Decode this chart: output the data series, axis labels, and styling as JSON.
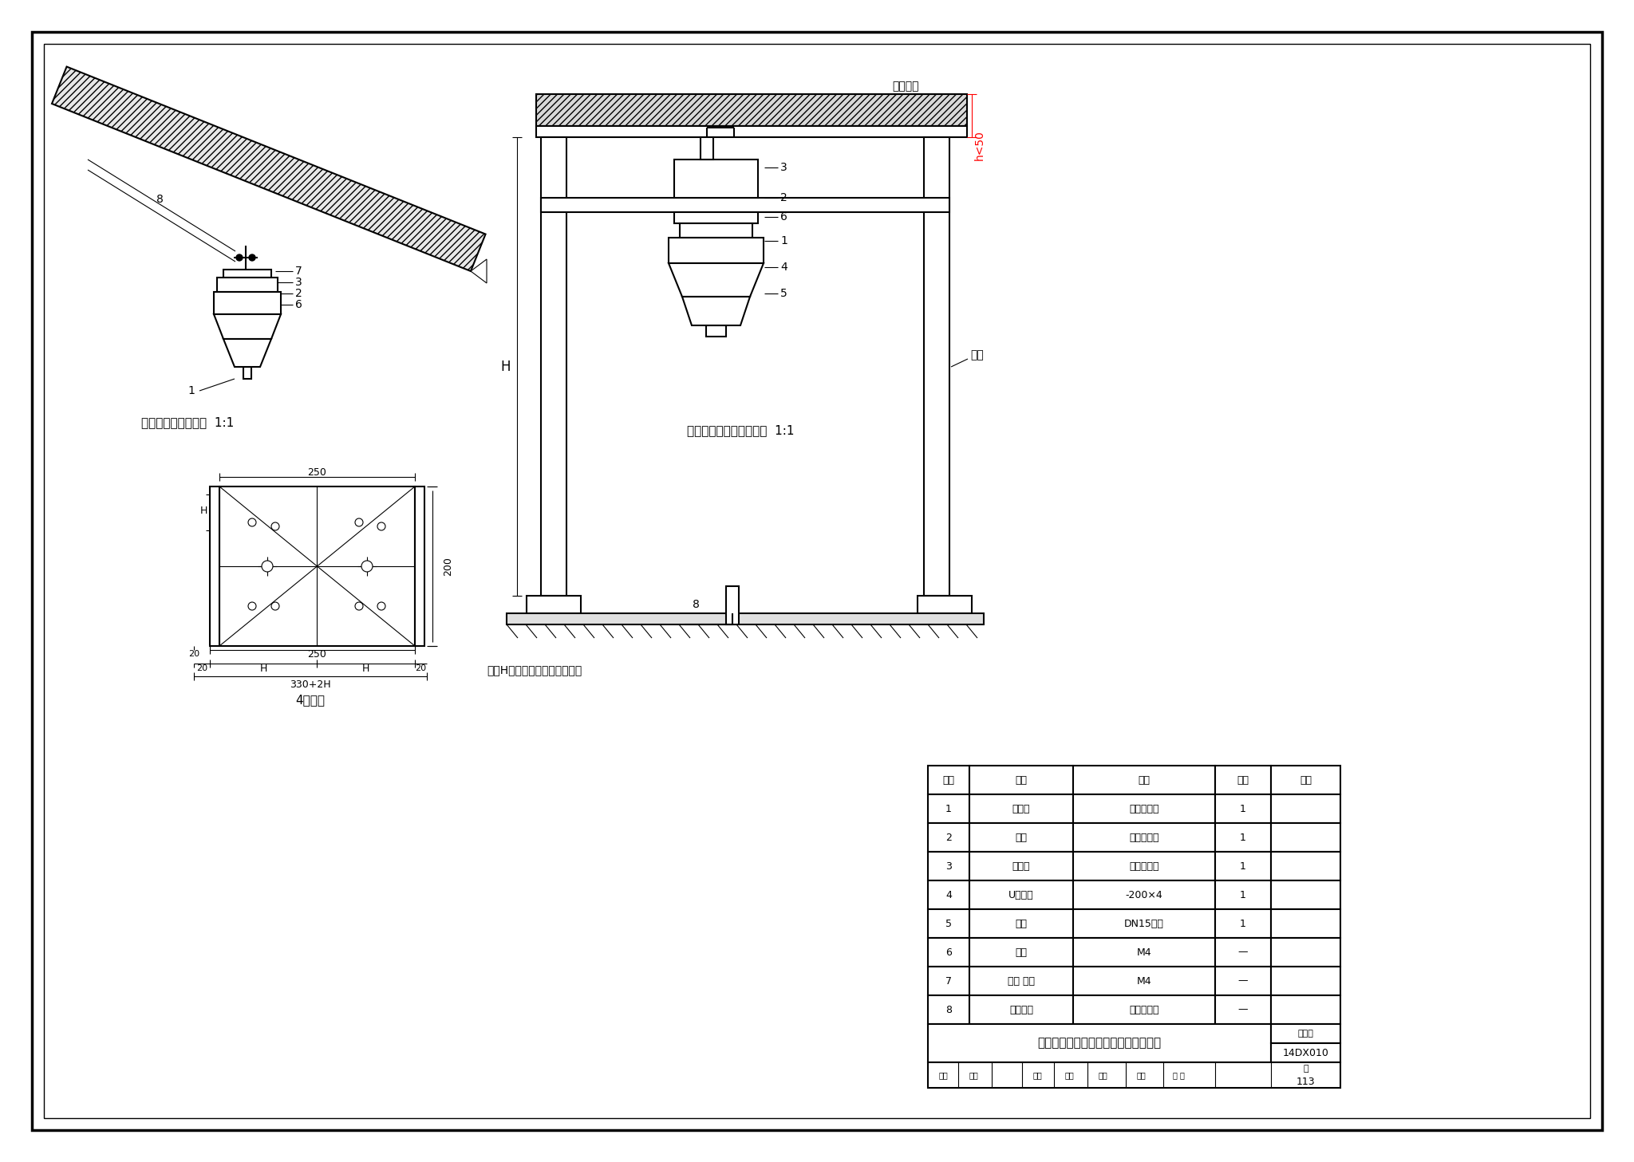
{
  "bg_color": "#ffffff",
  "border_color": "#000000",
  "line_color": "#000000",
  "title_text": "探测器在斜面上、在活动地板内安装图",
  "figure_num": "14DX010",
  "page_num": "113",
  "table_headers": [
    "序号",
    "名称",
    "规格",
    "数量",
    "备注"
  ],
  "table_rows": [
    [
      "1",
      "探测器",
      "见设计选型",
      "1",
      ""
    ],
    [
      "2",
      "底座",
      "见设计选型",
      "1",
      ""
    ],
    [
      "3",
      "接线盒",
      "见设计选型",
      "1",
      ""
    ],
    [
      "4",
      "U型支架",
      "-200×4",
      "1",
      ""
    ],
    [
      "5",
      "导管",
      "DN15钢管",
      "1",
      ""
    ],
    [
      "6",
      "螺钉",
      "M4",
      "—",
      ""
    ],
    [
      "7",
      "螺钉 螺母",
      "M4",
      "—",
      ""
    ],
    [
      "8",
      "膨胀螺栓",
      "见设计选型",
      "—",
      ""
    ]
  ],
  "left_caption": "探测器在斜面上安装  1:1",
  "right_caption": "探测器在活动地板内安装  1:1",
  "part4_caption": "4号零件",
  "note_text": "注：H由设计或现场施工确定。",
  "dim_250": "250",
  "dim_H": "H",
  "dim_200": "200",
  "dim_20": "20",
  "dim_330_2H": "330+2H",
  "label_h50": "h<50",
  "label_H": "H",
  "label_lizhu": "立柱",
  "label_huodong": "活动地板",
  "red_color": "#ff0000"
}
